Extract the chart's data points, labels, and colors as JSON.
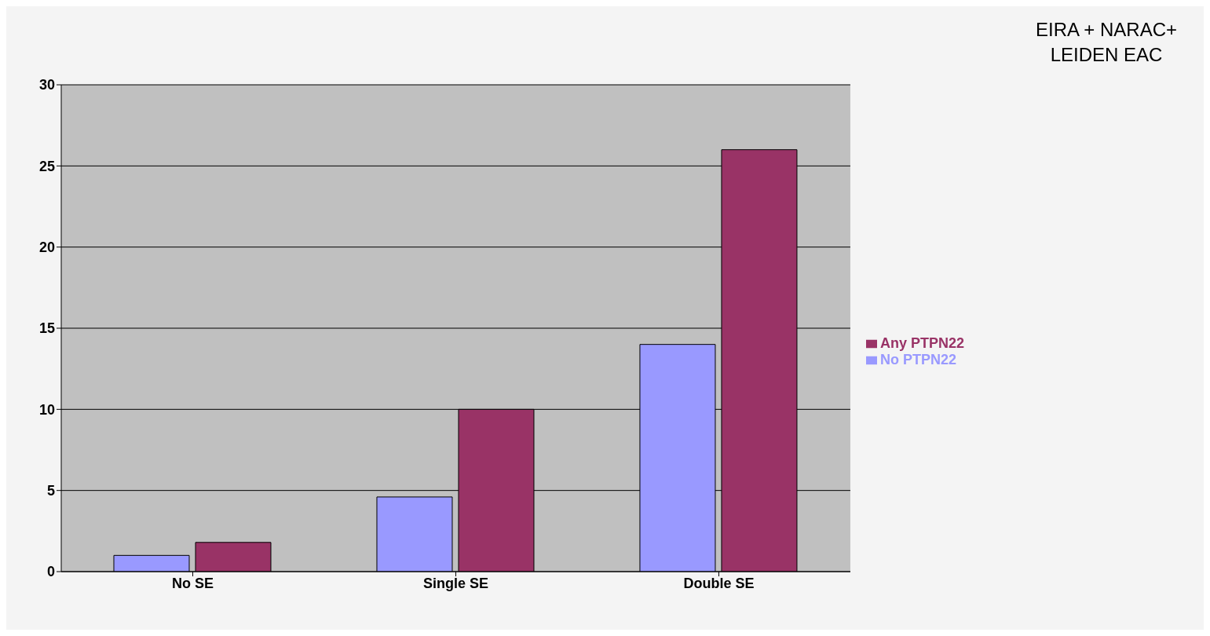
{
  "chart_data": {
    "type": "bar",
    "title": "EIRA + NARAC+ LEIDEN EAC",
    "categories": [
      "No SE",
      "Single SE",
      "Double SE"
    ],
    "series": [
      {
        "name": "No PTPN22",
        "color": "#9999ff",
        "values": [
          1,
          4.6,
          14
        ]
      },
      {
        "name": "Any PTPN22",
        "color": "#993366",
        "values": [
          1.8,
          10,
          26
        ]
      }
    ],
    "ylim": [
      0,
      30
    ],
    "yticks": [
      0,
      5,
      10,
      15,
      20,
      25,
      30
    ],
    "grid": "y",
    "legend": "right"
  }
}
